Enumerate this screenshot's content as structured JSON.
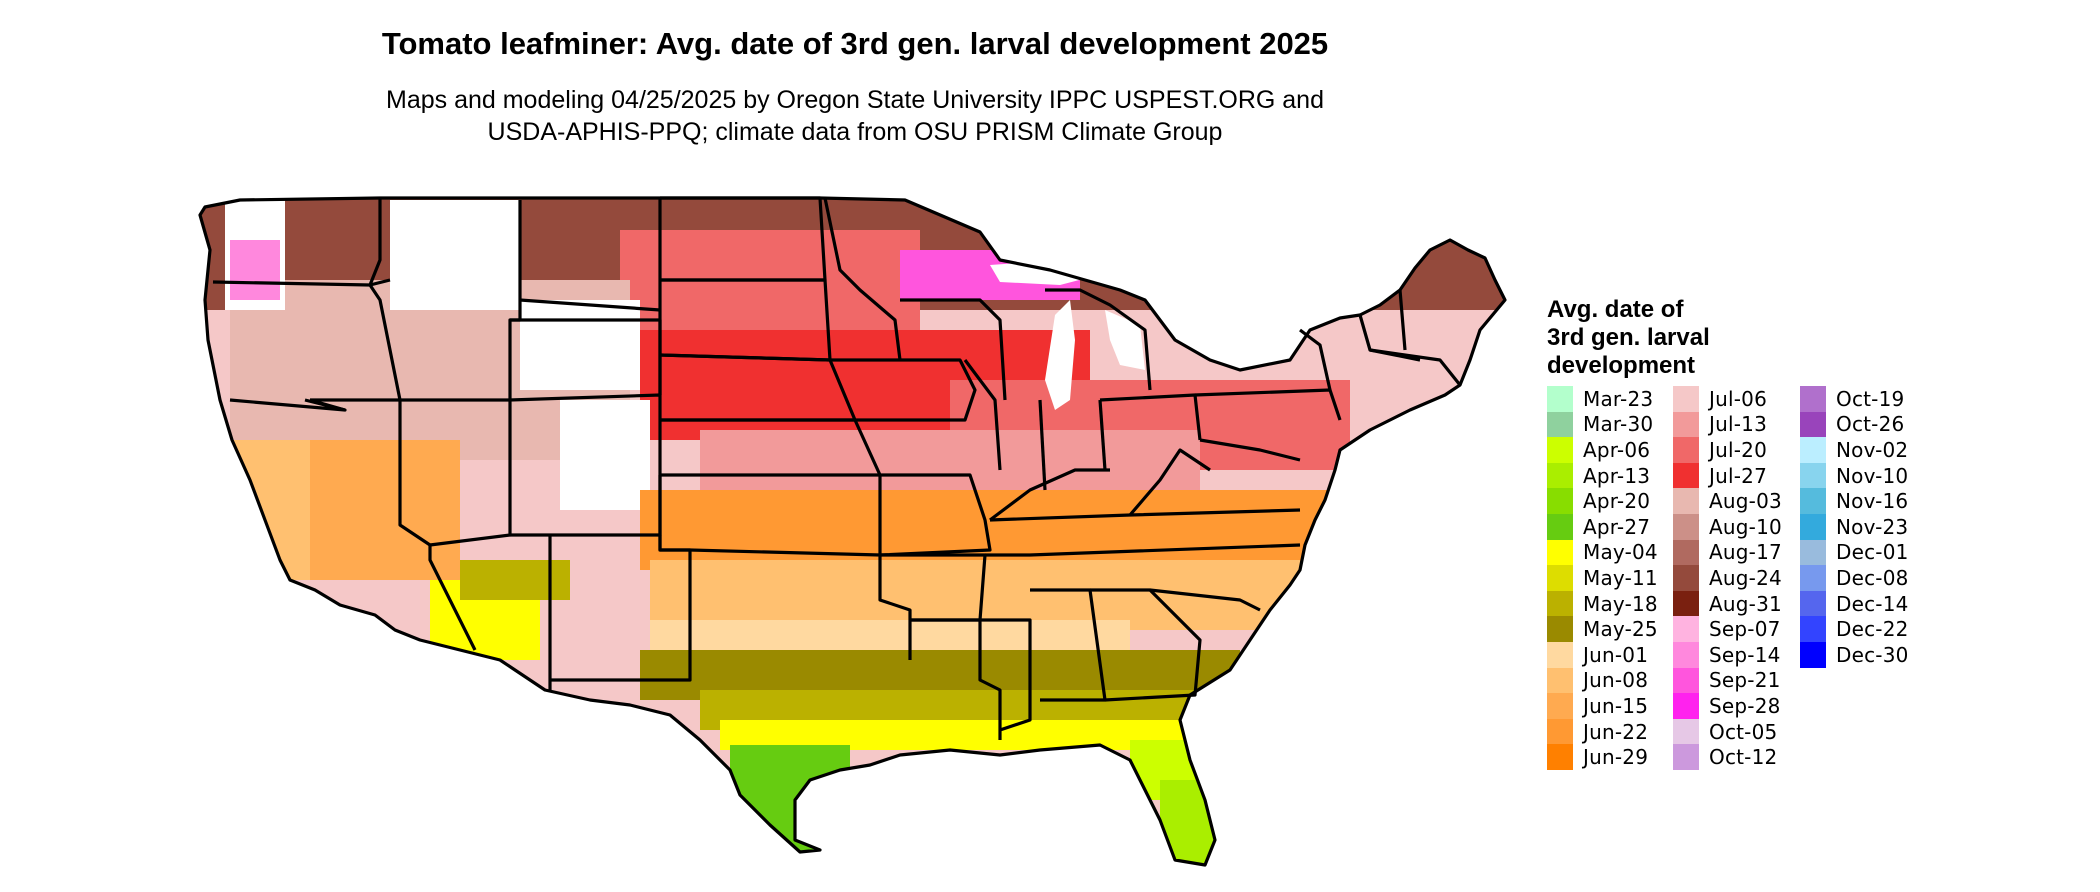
{
  "title": "Tomato leafminer: Avg. date of 3rd gen. larval development 2025",
  "subtitle_line1": "Maps and modeling 04/25/2025 by Oregon State University IPPC USPEST.ORG and",
  "subtitle_line2": "USDA-APHIS-PPQ; climate data from OSU PRISM Climate Group",
  "legend": {
    "title_line1": "Avg. date of",
    "title_line2": "3rd gen. larval",
    "title_line3": "development",
    "columns": [
      [
        {
          "label": "Mar-23",
          "color": "#b3ffcc"
        },
        {
          "label": "Mar-30",
          "color": "#8fd19e"
        },
        {
          "label": "Apr-06",
          "color": "#ccff00"
        },
        {
          "label": "Apr-13",
          "color": "#aaee00"
        },
        {
          "label": "Apr-20",
          "color": "#88dd00"
        },
        {
          "label": "Apr-27",
          "color": "#66cc11"
        },
        {
          "label": "May-04",
          "color": "#ffff00"
        },
        {
          "label": "May-11",
          "color": "#dddd00"
        },
        {
          "label": "May-18",
          "color": "#bbb100"
        },
        {
          "label": "May-25",
          "color": "#9a8a00"
        },
        {
          "label": "Jun-01",
          "color": "#ffd9a0"
        },
        {
          "label": "Jun-08",
          "color": "#ffc070"
        },
        {
          "label": "Jun-15",
          "color": "#ffaa50"
        },
        {
          "label": "Jun-22",
          "color": "#ff9933"
        },
        {
          "label": "Jun-29",
          "color": "#ff8000"
        }
      ],
      [
        {
          "label": "Jul-06",
          "color": "#f5c8c8"
        },
        {
          "label": "Jul-13",
          "color": "#f29a9a"
        },
        {
          "label": "Jul-20",
          "color": "#f06868"
        },
        {
          "label": "Jul-27",
          "color": "#f03030"
        },
        {
          "label": "Aug-03",
          "color": "#e8b8b0"
        },
        {
          "label": "Aug-10",
          "color": "#cc9088"
        },
        {
          "label": "Aug-17",
          "color": "#b06a60"
        },
        {
          "label": "Aug-24",
          "color": "#944a3c"
        },
        {
          "label": "Aug-31",
          "color": "#7a2010"
        },
        {
          "label": "Sep-07",
          "color": "#ffb3e0"
        },
        {
          "label": "Sep-14",
          "color": "#ff88dd"
        },
        {
          "label": "Sep-21",
          "color": "#ff55dd"
        },
        {
          "label": "Sep-28",
          "color": "#ff22ee"
        },
        {
          "label": "Oct-05",
          "color": "#e6c8e6"
        },
        {
          "label": "Oct-12",
          "color": "#cc99dd"
        }
      ],
      [
        {
          "label": "Oct-19",
          "color": "#b070cc"
        },
        {
          "label": "Oct-26",
          "color": "#9944bb"
        },
        {
          "label": "Nov-02",
          "color": "#bbeeff"
        },
        {
          "label": "Nov-10",
          "color": "#88d4ee"
        },
        {
          "label": "Nov-16",
          "color": "#55bbdd"
        },
        {
          "label": "Nov-23",
          "color": "#33aadd"
        },
        {
          "label": "Dec-01",
          "color": "#99bbdd"
        },
        {
          "label": "Dec-08",
          "color": "#7799ee"
        },
        {
          "label": "Dec-14",
          "color": "#5566ee"
        },
        {
          "label": "Dec-22",
          "color": "#3344ff"
        },
        {
          "label": "Dec-30",
          "color": "#0000ff"
        }
      ]
    ]
  }
}
